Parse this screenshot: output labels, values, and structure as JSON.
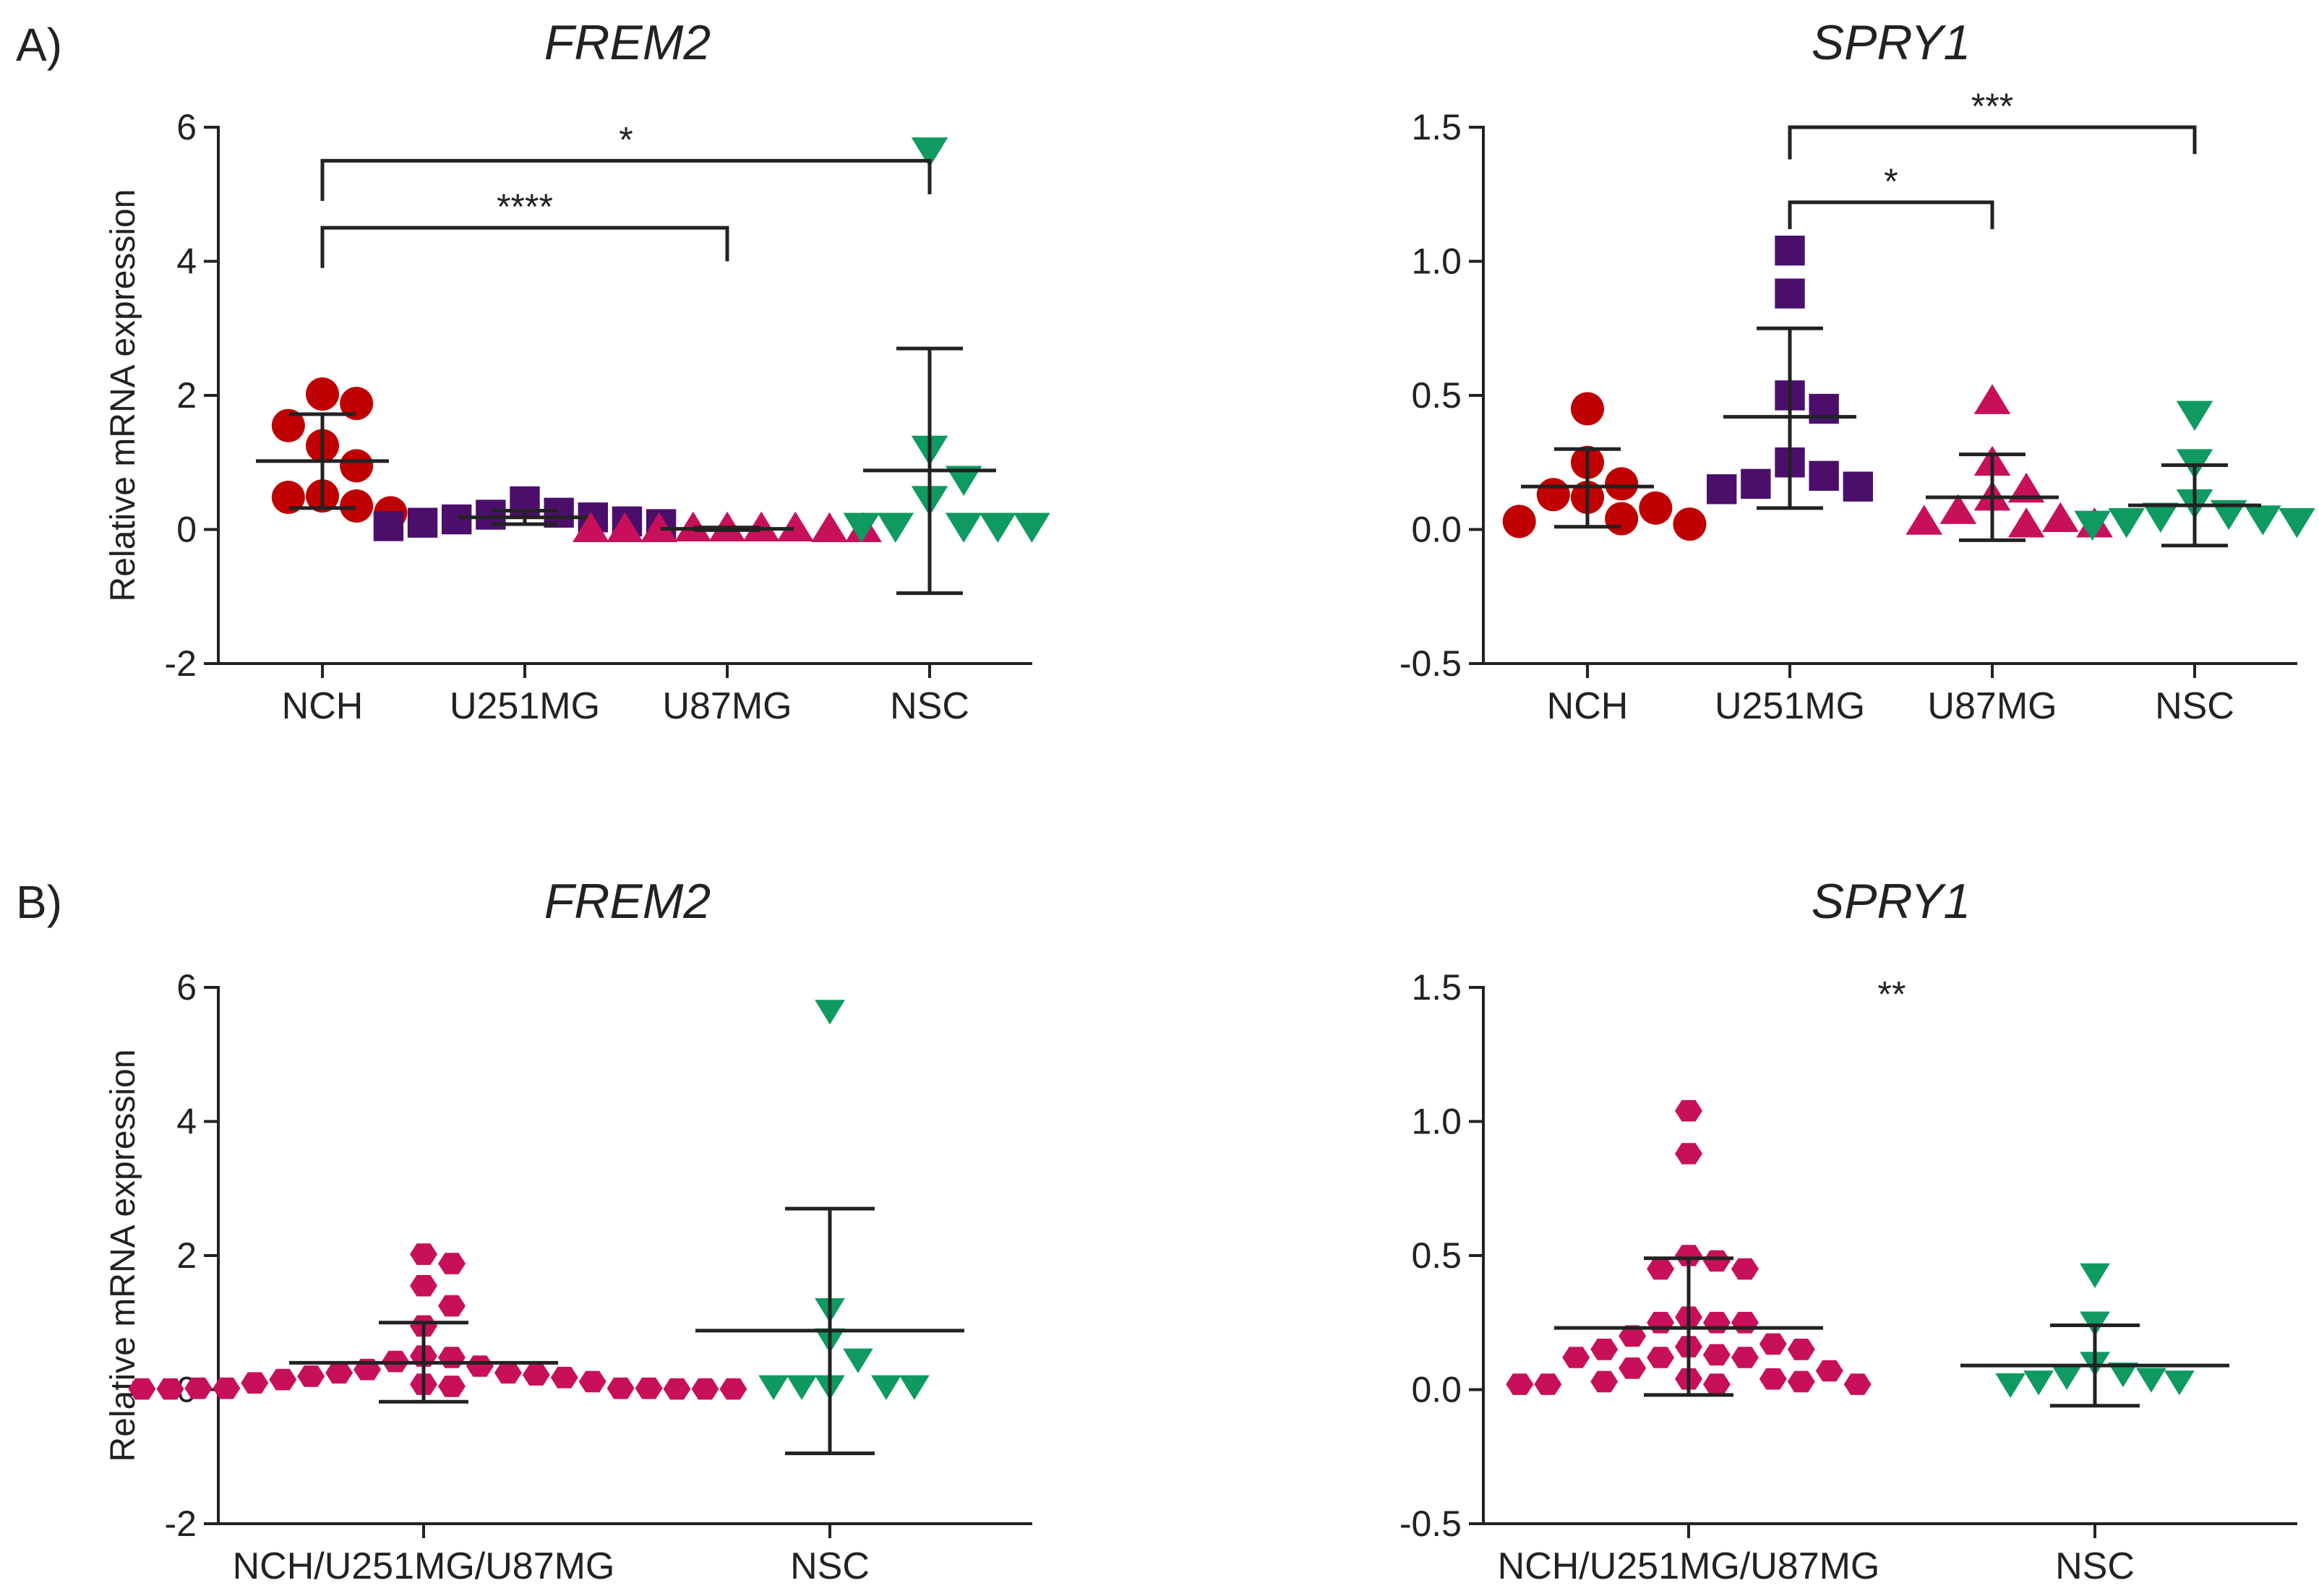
{
  "panel_labels": [
    "A)",
    "B)"
  ],
  "colors": {
    "NCH": "#c00000",
    "U251MG": "#4b0f6b",
    "U87MG": "#c8105a",
    "NSC": "#0e9a60",
    "pooled": "#c8105a",
    "axis": "#222222"
  },
  "chart_data": [
    {
      "id": "A-FREM2",
      "type": "scatter",
      "title": "FREM2",
      "ylabel": "Relative mRNA expression",
      "ylim": [
        -2,
        6
      ],
      "yticks": [
        -2,
        0,
        2,
        4,
        6
      ],
      "ytick_labels": [
        "-2",
        "0",
        "2",
        "4",
        "6"
      ],
      "categories": [
        "NCH",
        "U251MG",
        "U87MG",
        "NSC"
      ],
      "series": [
        {
          "category": "NCH",
          "marker": "circle",
          "color": "#c00000",
          "values": [
            2.02,
            1.88,
            1.55,
            1.25,
            0.95,
            0.5,
            0.48,
            0.35,
            0.25
          ],
          "mean": 1.02,
          "sd_low": 0.32,
          "sd_high": 1.72
        },
        {
          "category": "U251MG",
          "marker": "square",
          "color": "#4b0f6b",
          "values": [
            0.42,
            0.25,
            0.22,
            0.18,
            0.15,
            0.12,
            0.1,
            0.08,
            0.05
          ],
          "mean": 0.18,
          "sd_low": 0.08,
          "sd_high": 0.28
        },
        {
          "category": "U87MG",
          "marker": "triangle-up",
          "color": "#c8105a",
          "values": [
            0.02,
            0.02,
            0.02,
            0.02,
            0.01,
            0.01,
            0.01,
            0.01,
            0.01
          ],
          "mean": 0.01,
          "sd_low": -0.01,
          "sd_high": 0.03
        },
        {
          "category": "NSC",
          "marker": "triangle-down",
          "color": "#0e9a60",
          "values": [
            5.65,
            1.2,
            0.75,
            0.45,
            0.05,
            0.05,
            0.05,
            0.05,
            0.05
          ],
          "mean": 0.88,
          "sd_low": -0.95,
          "sd_high": 2.7
        }
      ],
      "significance": [
        {
          "from": "NCH",
          "to": "NSC",
          "label": "*",
          "y": 5.5,
          "drop_to": [
            4.9,
            5.0
          ]
        },
        {
          "from": "NCH",
          "to": "U87MG",
          "label": "****",
          "y": 4.5,
          "drop_to": [
            3.9,
            4.0
          ]
        }
      ]
    },
    {
      "id": "A-SPRY1",
      "type": "scatter",
      "title": "SPRY1",
      "ylabel": "",
      "ylim": [
        -0.5,
        1.5
      ],
      "yticks": [
        -0.5,
        0,
        0.5,
        1,
        1.5
      ],
      "ytick_labels": [
        "-0.5",
        "0.0",
        "0.5",
        "1.0",
        "1.5"
      ],
      "categories": [
        "NCH",
        "U251MG",
        "U87MG",
        "NSC"
      ],
      "series": [
        {
          "category": "NCH",
          "marker": "circle",
          "color": "#c00000",
          "values": [
            0.45,
            0.25,
            0.17,
            0.13,
            0.12,
            0.08,
            0.04,
            0.03,
            0.02
          ],
          "mean": 0.16,
          "sd_low": 0.01,
          "sd_high": 0.3
        },
        {
          "category": "U251MG",
          "marker": "square",
          "color": "#4b0f6b",
          "values": [
            1.04,
            0.88,
            0.5,
            0.45,
            0.25,
            0.2,
            0.17,
            0.16,
            0.15
          ],
          "mean": 0.42,
          "sd_low": 0.08,
          "sd_high": 0.75
        },
        {
          "category": "U87MG",
          "marker": "triangle-up",
          "color": "#c8105a",
          "values": [
            0.48,
            0.25,
            0.15,
            0.12,
            0.07,
            0.04,
            0.03,
            0.02,
            0.02
          ],
          "mean": 0.12,
          "sd_low": -0.04,
          "sd_high": 0.28
        },
        {
          "category": "NSC",
          "marker": "triangle-down",
          "color": "#0e9a60",
          "values": [
            0.43,
            0.25,
            0.1,
            0.06,
            0.05,
            0.04,
            0.03,
            0.03,
            0.02
          ],
          "mean": 0.09,
          "sd_low": -0.06,
          "sd_high": 0.24
        }
      ],
      "significance": [
        {
          "from": "U251MG",
          "to": "NSC",
          "label": "***",
          "y": 1.5,
          "drop_to": [
            1.38,
            1.4
          ]
        },
        {
          "from": "U251MG",
          "to": "U87MG",
          "label": "*",
          "y": 1.22,
          "drop_to": [
            1.12,
            1.12
          ]
        }
      ]
    },
    {
      "id": "B-FREM2",
      "type": "scatter",
      "title": "FREM2",
      "ylabel": "Relative mRNA expression",
      "ylim": [
        -2,
        6
      ],
      "yticks": [
        -2,
        0,
        2,
        4,
        6
      ],
      "ytick_labels": [
        "-2",
        "0",
        "2",
        "4",
        "6"
      ],
      "categories": [
        "NCH/U251MG/U87MG",
        "NSC"
      ],
      "series": [
        {
          "category": "NCH/U251MG/U87MG",
          "marker": "hexagon",
          "color": "#c8105a",
          "values": [
            2.02,
            1.88,
            1.55,
            1.25,
            0.95,
            0.5,
            0.48,
            0.42,
            0.35,
            0.3,
            0.25,
            0.25,
            0.22,
            0.2,
            0.18,
            0.15,
            0.12,
            0.1,
            0.08,
            0.05,
            0.02,
            0.02,
            0.02,
            0.02,
            0.01,
            0.01,
            0.01,
            0.01,
            0.01
          ],
          "mean": 0.4,
          "sd_low": -0.18,
          "sd_high": 1.0
        },
        {
          "category": "NSC",
          "marker": "triangle-down",
          "color": "#0e9a60",
          "values": [
            5.65,
            1.2,
            0.75,
            0.45,
            0.05,
            0.05,
            0.05,
            0.05,
            0.05
          ],
          "mean": 0.88,
          "sd_low": -0.95,
          "sd_high": 2.7
        }
      ],
      "significance": []
    },
    {
      "id": "B-SPRY1",
      "type": "scatter",
      "title": "SPRY1",
      "ylabel": "",
      "ylim": [
        -0.5,
        1.5
      ],
      "yticks": [
        -0.5,
        0,
        0.5,
        1,
        1.5
      ],
      "ytick_labels": [
        "-0.5",
        "0.0",
        "0.5",
        "1.0",
        "1.5"
      ],
      "categories": [
        "NCH/U251MG/U87MG",
        "NSC"
      ],
      "series": [
        {
          "category": "NCH/U251MG/U87MG",
          "marker": "hexagon",
          "color": "#c8105a",
          "values": [
            1.04,
            0.88,
            0.5,
            0.48,
            0.45,
            0.45,
            0.27,
            0.25,
            0.25,
            0.25,
            0.2,
            0.17,
            0.16,
            0.15,
            0.15,
            0.13,
            0.12,
            0.12,
            0.12,
            0.08,
            0.07,
            0.04,
            0.04,
            0.03,
            0.03,
            0.02,
            0.02,
            0.02,
            0.02
          ],
          "mean": 0.23,
          "sd_low": -0.02,
          "sd_high": 0.49
        },
        {
          "category": "NSC",
          "marker": "triangle-down",
          "color": "#0e9a60",
          "values": [
            0.43,
            0.25,
            0.1,
            0.06,
            0.05,
            0.04,
            0.03,
            0.03,
            0.02
          ],
          "mean": 0.09,
          "sd_low": -0.06,
          "sd_high": 0.24
        }
      ],
      "significance": [
        {
          "label": "**",
          "at": 1.52
        }
      ]
    }
  ]
}
